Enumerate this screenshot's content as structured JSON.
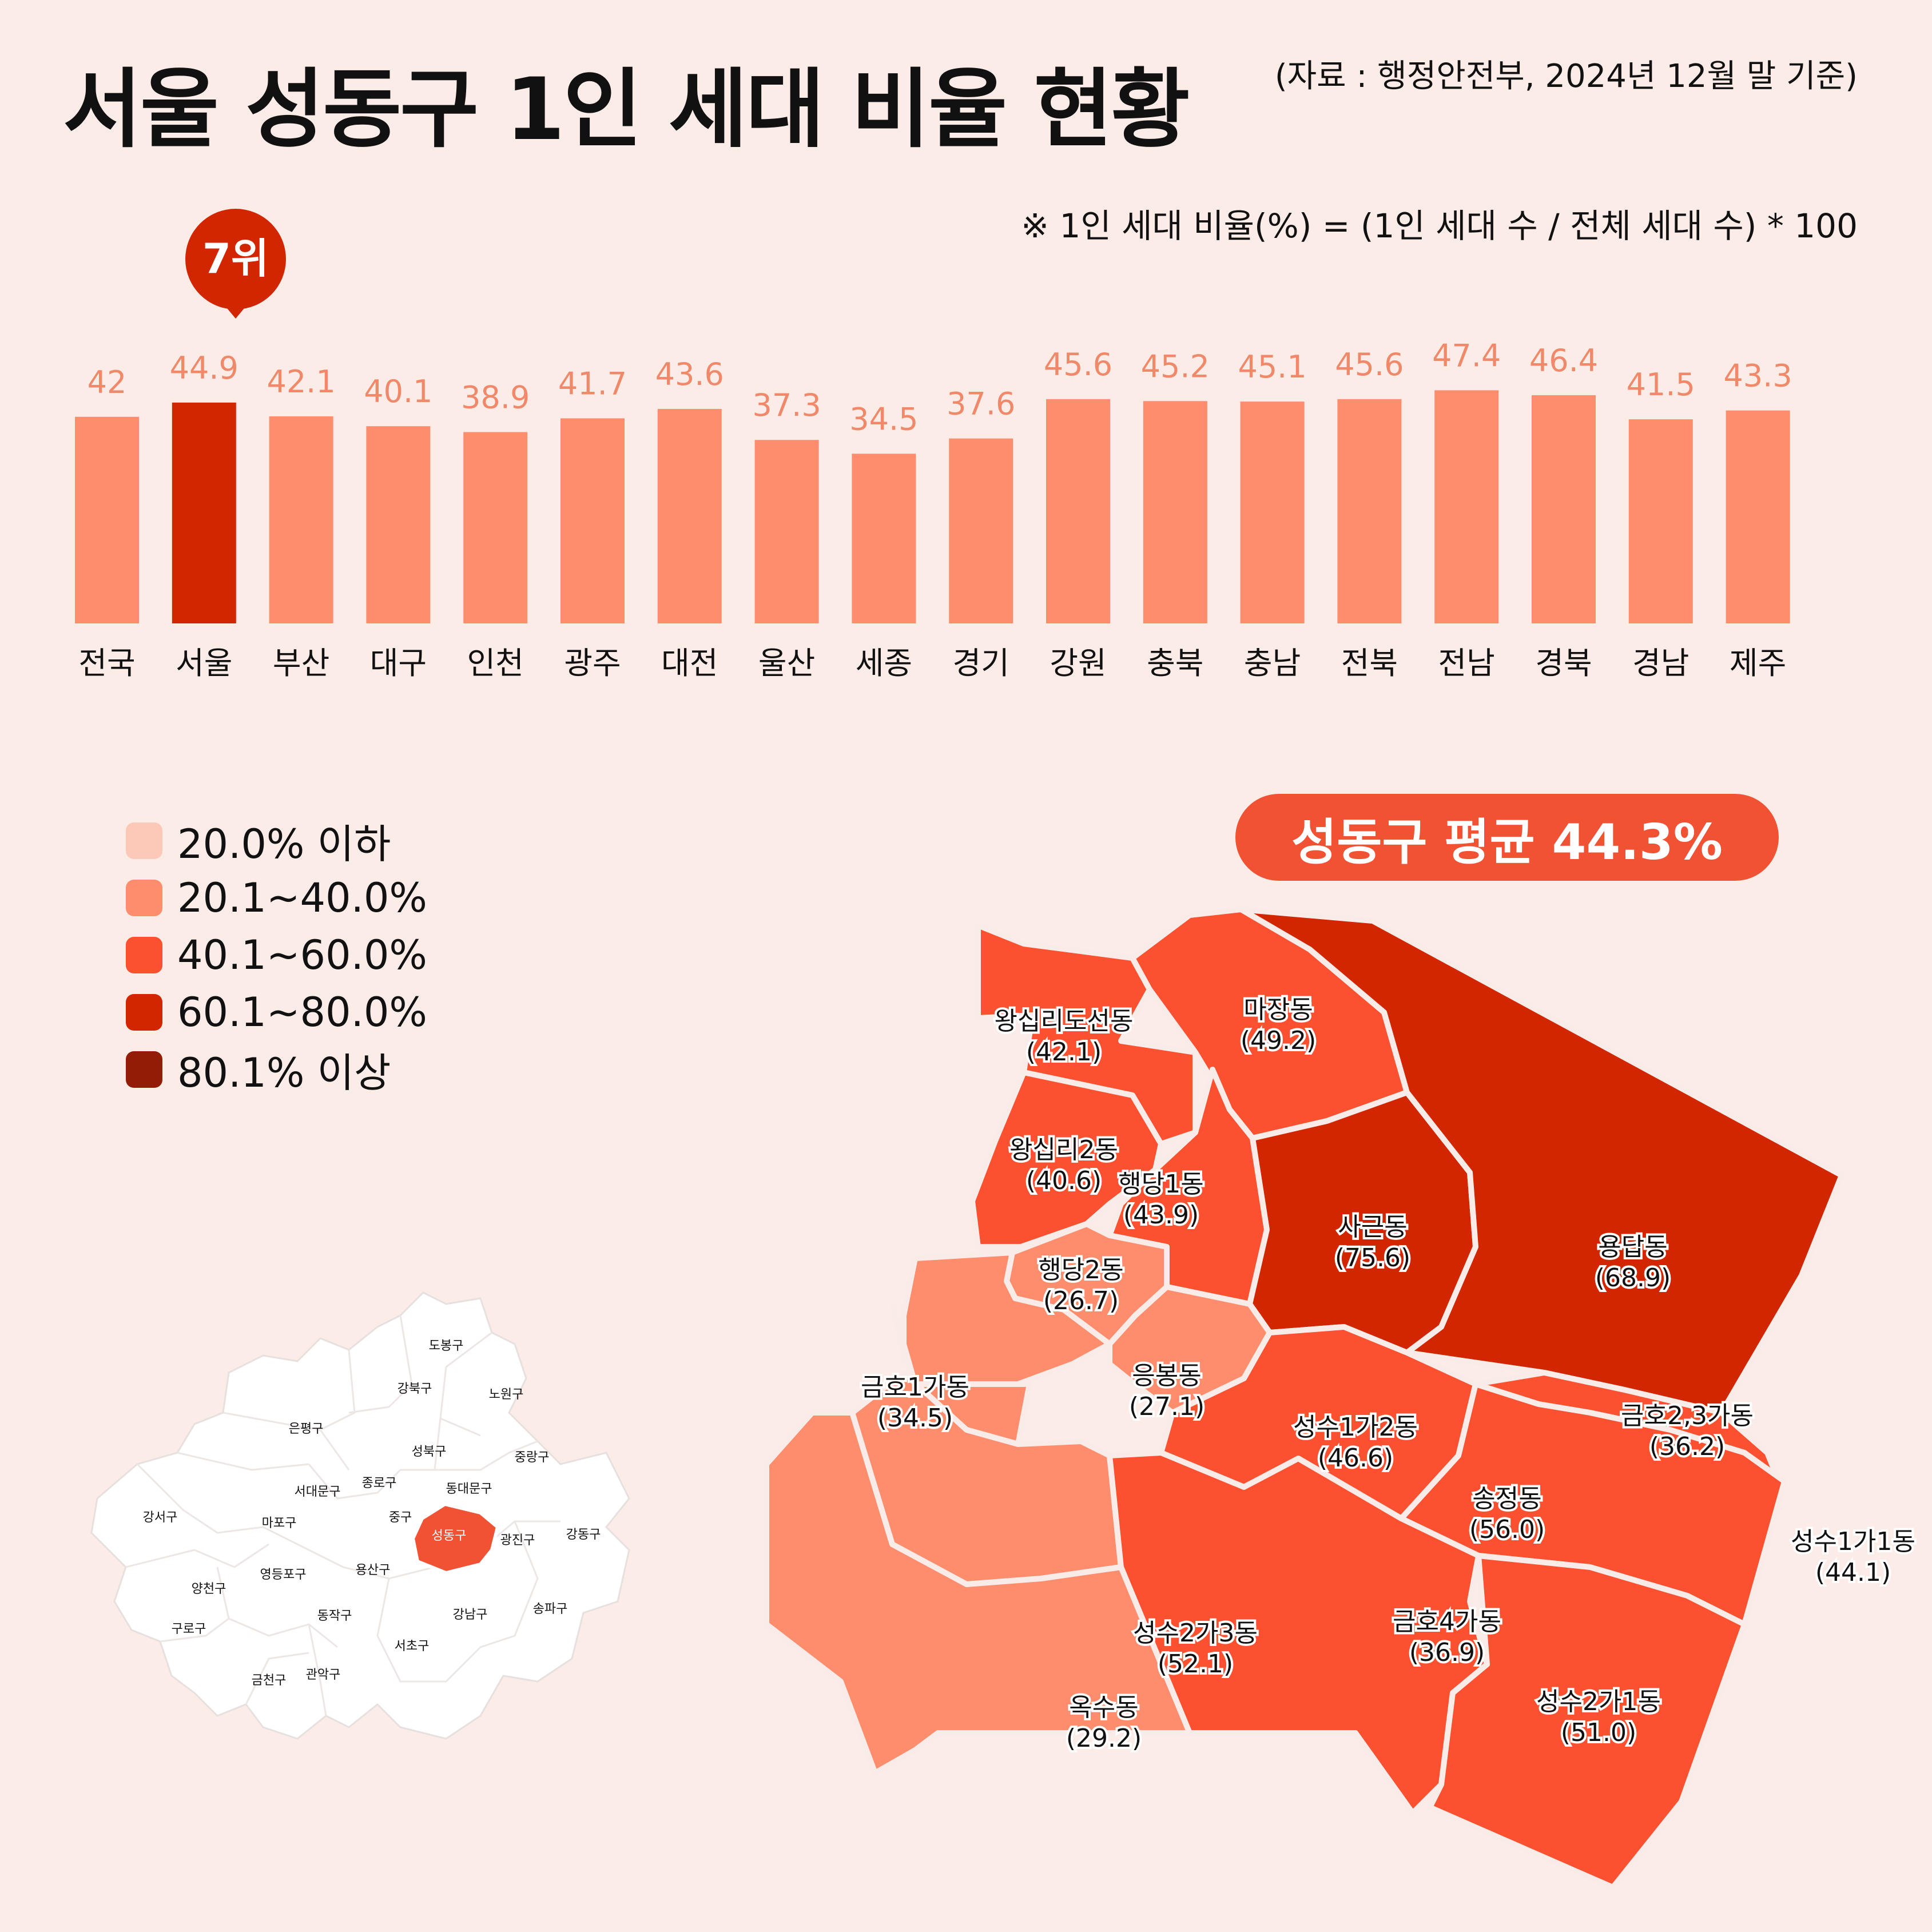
{
  "header": {
    "title": "서울 성동구 1인 세대 비율 현황",
    "source": "(자료 : 행정안전부, 2024년 12월 말 기준)",
    "formula": "※ 1인 세대 비율(%) = (1인 세대 수 / 전체 세대 수) * 100"
  },
  "rank_badge": "7위",
  "colors": {
    "bar": "#fd8d6c",
    "highlight": "#d12600",
    "value_label": "#f0896a",
    "legend": [
      "#fcc8b8",
      "#fd8d6c",
      "#fb5131",
      "#d12600",
      "#921c06"
    ]
  },
  "chart_data": {
    "type": "bar",
    "categories": [
      "전국",
      "서울",
      "부산",
      "대구",
      "인천",
      "광주",
      "대전",
      "울산",
      "세종",
      "경기",
      "강원",
      "충북",
      "충남",
      "전북",
      "전남",
      "경북",
      "경남",
      "제주"
    ],
    "values": [
      42,
      44.9,
      42.1,
      40.1,
      38.9,
      41.7,
      43.6,
      37.3,
      34.5,
      37.6,
      45.6,
      45.2,
      45.1,
      45.6,
      47.4,
      46.4,
      41.5,
      43.3
    ],
    "value_labels": [
      "42",
      "44.9",
      "42.1",
      "40.1",
      "38.9",
      "41.7",
      "43.6",
      "37.3",
      "34.5",
      "37.6",
      "45.6",
      "45.2",
      "45.1",
      "45.6",
      "47.4",
      "46.4",
      "41.5",
      "43.3"
    ],
    "highlight": "서울",
    "grid": false
  },
  "legend": {
    "items": [
      "20.0% 이하",
      "20.1~40.0%",
      "40.1~60.0%",
      "60.1~80.0%",
      "80.1% 이상"
    ]
  },
  "seongdong_average": "성동구 평균 44.3%",
  "seoul_map": {
    "districts": [
      {
        "name": "도봉구"
      },
      {
        "name": "강북구"
      },
      {
        "name": "노원구"
      },
      {
        "name": "은평구"
      },
      {
        "name": "성북구"
      },
      {
        "name": "중랑구"
      },
      {
        "name": "서대문구"
      },
      {
        "name": "종로구"
      },
      {
        "name": "동대문구"
      },
      {
        "name": "강서구"
      },
      {
        "name": "마포구"
      },
      {
        "name": "중구"
      },
      {
        "name": "성동구",
        "highlight": true
      },
      {
        "name": "광진구"
      },
      {
        "name": "강동구"
      },
      {
        "name": "양천구"
      },
      {
        "name": "영등포구"
      },
      {
        "name": "용산구"
      },
      {
        "name": "구로구"
      },
      {
        "name": "동작구"
      },
      {
        "name": "강남구"
      },
      {
        "name": "송파구"
      },
      {
        "name": "서초구"
      },
      {
        "name": "금천구"
      },
      {
        "name": "관악구"
      }
    ]
  },
  "dongs": [
    {
      "name": "왕십리도선동",
      "value": "(42.1)",
      "color": "#fb5131"
    },
    {
      "name": "마장동",
      "value": "(49.2)",
      "color": "#fb5131"
    },
    {
      "name": "왕십리2동",
      "value": "(40.6)",
      "color": "#fb5131"
    },
    {
      "name": "행당1동",
      "value": "(43.9)",
      "color": "#fb5131"
    },
    {
      "name": "사근동",
      "value": "(75.6)",
      "color": "#d12600"
    },
    {
      "name": "용답동",
      "value": "(68.9)",
      "color": "#d12600"
    },
    {
      "name": "행당2동",
      "value": "(26.7)",
      "color": "#fd8d6c"
    },
    {
      "name": "금호1가동",
      "value": "(34.5)",
      "color": "#fd8d6c"
    },
    {
      "name": "응봉동",
      "value": "(27.1)",
      "color": "#fd8d6c"
    },
    {
      "name": "금호2,3가동",
      "value": "(36.2)",
      "color": "#fd8d6c"
    },
    {
      "name": "성수1가2동",
      "value": "(46.6)",
      "color": "#fb5131"
    },
    {
      "name": "송정동",
      "value": "(56.0)",
      "color": "#fb5131"
    },
    {
      "name": "금호4가동",
      "value": "(36.9)",
      "color": "#fd8d6c"
    },
    {
      "name": "성수2가3동",
      "value": "(52.1)",
      "color": "#fb5131"
    },
    {
      "name": "성수1가1동",
      "value": "(44.1)",
      "color": "#fb5131"
    },
    {
      "name": "옥수동",
      "value": "(29.2)",
      "color": "#fd8d6c"
    },
    {
      "name": "성수2가1동",
      "value": "(51.0)",
      "color": "#fb5131"
    }
  ]
}
